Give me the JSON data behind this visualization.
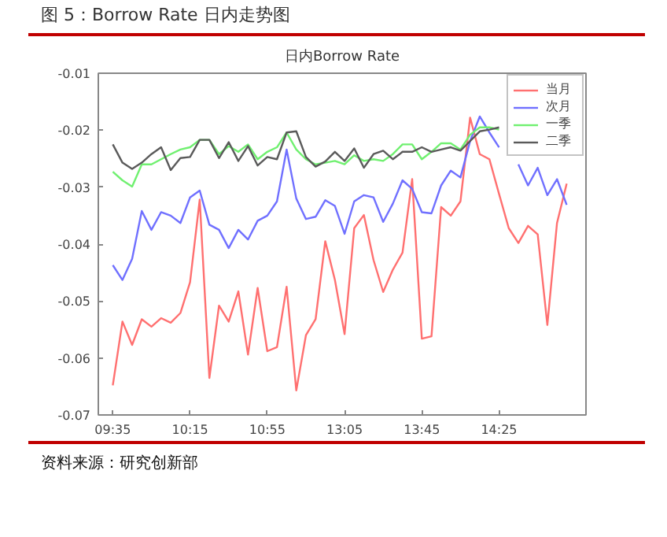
{
  "chart_data": {
    "type": "line",
    "title": "图 5：Borrow Rate 日内走势图",
    "subtitle": "日内Borrow Rate",
    "categories": [
      "09:35",
      null,
      null,
      null,
      null,
      null,
      null,
      null,
      "10:15",
      null,
      null,
      null,
      null,
      null,
      null,
      null,
      "10:55",
      null,
      null,
      null,
      null,
      null,
      null,
      null,
      "13:05",
      null,
      null,
      null,
      null,
      null,
      null,
      null,
      "13:45",
      null,
      null,
      null,
      null,
      null,
      null,
      null,
      "14:25",
      null,
      null,
      null,
      null,
      null,
      null,
      null
    ],
    "ylim": [
      -0.07,
      -0.01
    ],
    "yticks": [
      -0.07,
      -0.06,
      -0.05,
      -0.04,
      -0.03,
      -0.02,
      -0.01
    ],
    "series": [
      {
        "name": "当月",
        "color": "#ff7070",
        "values": [
          -0.0648,
          -0.0536,
          -0.0577,
          -0.0532,
          -0.0545,
          -0.053,
          -0.0538,
          -0.0521,
          -0.0467,
          -0.0322,
          -0.0635,
          -0.0508,
          -0.0536,
          -0.0483,
          -0.0594,
          -0.0477,
          -0.0588,
          -0.0581,
          -0.0475,
          -0.0657,
          -0.056,
          -0.0532,
          -0.0395,
          -0.0463,
          -0.0558,
          -0.0372,
          -0.0349,
          -0.0428,
          -0.0484,
          -0.0445,
          -0.0415,
          -0.0286,
          -0.0566,
          -0.0562,
          -0.0335,
          -0.035,
          -0.0325,
          -0.0178,
          -0.0242,
          -0.0251,
          -0.0312,
          -0.0372,
          -0.0398,
          -0.0368,
          -0.0383,
          -0.0542,
          -0.0363,
          -0.0294
        ]
      },
      {
        "name": "次月",
        "color": "#7070ff",
        "values": [
          -0.0437,
          -0.0463,
          -0.0426,
          -0.0342,
          -0.0375,
          -0.0344,
          -0.035,
          -0.0363,
          -0.0318,
          -0.0306,
          -0.0366,
          -0.0375,
          -0.0407,
          -0.0375,
          -0.0392,
          -0.0359,
          -0.035,
          -0.0325,
          -0.0234,
          -0.032,
          -0.0356,
          -0.0352,
          -0.0323,
          -0.0333,
          -0.0382,
          -0.0325,
          -0.0314,
          -0.0318,
          -0.0361,
          -0.0329,
          -0.0288,
          -0.0303,
          -0.0344,
          -0.0346,
          -0.0297,
          -0.0271,
          -0.0283,
          -0.0219,
          -0.0176,
          -0.0204,
          -0.023,
          null,
          -0.026,
          -0.0297,
          -0.0266,
          -0.0314,
          -0.0286,
          -0.0331
        ]
      },
      {
        "name": "一季",
        "color": "#70f070",
        "values": [
          -0.0273,
          -0.0288,
          -0.0299,
          -0.026,
          -0.026,
          -0.0251,
          -0.0242,
          -0.0234,
          -0.023,
          -0.0217,
          -0.0217,
          -0.0242,
          -0.0228,
          -0.0238,
          -0.0225,
          -0.0251,
          -0.0238,
          -0.023,
          -0.0204,
          -0.0234,
          -0.0251,
          -0.026,
          -0.0257,
          -0.0254,
          -0.026,
          -0.0244,
          -0.0254,
          -0.0251,
          -0.0254,
          -0.0242,
          -0.0225,
          -0.0225,
          -0.0251,
          -0.0238,
          -0.0223,
          -0.0223,
          -0.0234,
          -0.0208,
          -0.0195,
          -0.0195,
          -0.0199,
          null,
          null,
          null,
          null,
          null,
          null,
          null
        ]
      },
      {
        "name": "二季",
        "color": "#5a5a5a",
        "values": [
          -0.0225,
          -0.0257,
          -0.0268,
          -0.0257,
          -0.0242,
          -0.023,
          -0.027,
          -0.0249,
          -0.0247,
          -0.0217,
          -0.0217,
          -0.0249,
          -0.0221,
          -0.0254,
          -0.0228,
          -0.0262,
          -0.0247,
          -0.0251,
          -0.0204,
          -0.0202,
          -0.0247,
          -0.0264,
          -0.0255,
          -0.0238,
          -0.0254,
          -0.0232,
          -0.0266,
          -0.0242,
          -0.0236,
          -0.0251,
          -0.0238,
          -0.0238,
          -0.023,
          -0.0238,
          -0.0234,
          -0.023,
          -0.0236,
          -0.0219,
          -0.0202,
          -0.0199,
          -0.0195,
          null,
          null,
          null,
          null,
          null,
          null,
          null
        ]
      }
    ],
    "legend": "top right",
    "annotations": [
      "资料来源：研究创新部"
    ]
  }
}
